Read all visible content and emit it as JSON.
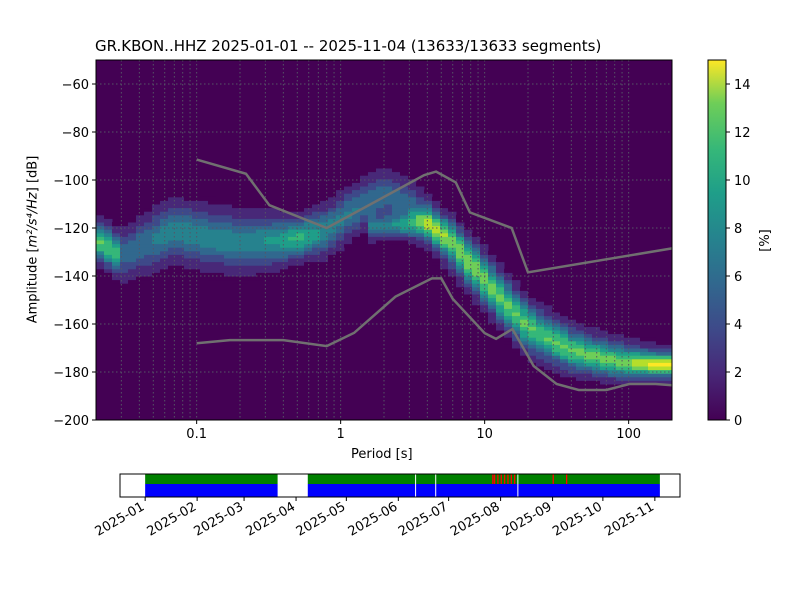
{
  "chart_data": {
    "type": "heatmap",
    "title": "GR.KBON..HHZ   2025-01-01 -- 2025-11-04  (13633/13633 segments)",
    "xlabel": "Period [s]",
    "ylabel_prefix": "Amplitude [",
    "ylabel_units": "m²/s⁴/Hz",
    "ylabel_suffix": "] [dB]",
    "xscale": "log",
    "xlim": [
      0.02,
      200
    ],
    "ylim": [
      -200,
      -50
    ],
    "xticks": [
      {
        "v": 0.1,
        "label": "0.1"
      },
      {
        "v": 1,
        "label": "1"
      },
      {
        "v": 10,
        "label": "10"
      },
      {
        "v": 100,
        "label": "100"
      }
    ],
    "yticks": [
      -60,
      -80,
      -100,
      -120,
      -140,
      -160,
      -180,
      -200
    ],
    "grid": true,
    "colorbar": {
      "label": "[%]",
      "range": [
        0,
        15
      ],
      "ticks": [
        0,
        2,
        4,
        6,
        8,
        10,
        12,
        14
      ]
    },
    "density_bands": [
      {
        "name": "main-band",
        "points": [
          [
            0.02,
            -125,
            5,
            11
          ],
          [
            0.03,
            -131,
            5,
            10
          ],
          [
            0.031,
            -131,
            6,
            5
          ],
          [
            0.05,
            -125,
            7,
            6
          ],
          [
            0.07,
            -121,
            7,
            7
          ],
          [
            0.1,
            -123,
            7,
            7
          ],
          [
            0.2,
            -126,
            7,
            7
          ],
          [
            0.4,
            -125,
            6,
            8
          ],
          [
            0.5,
            -124,
            5,
            10
          ],
          [
            0.8,
            -121,
            6,
            7
          ],
          [
            1.2,
            -113,
            6,
            6
          ],
          [
            2,
            -106,
            6,
            5
          ],
          [
            3,
            -110,
            6,
            5
          ],
          [
            5,
            -123,
            6,
            6
          ],
          [
            8,
            -136,
            6,
            7
          ],
          [
            12,
            -148,
            6,
            7
          ],
          [
            20,
            -162,
            6,
            7
          ],
          [
            40,
            -171,
            5,
            8
          ],
          [
            80,
            -176,
            4,
            9
          ],
          [
            150,
            -177,
            3,
            12
          ],
          [
            200,
            -177,
            3,
            12
          ]
        ]
      },
      {
        "name": "secondary-band",
        "points": [
          [
            1.5,
            -120,
            3,
            5
          ],
          [
            2.5,
            -119,
            3,
            7
          ],
          [
            4,
            -118,
            4,
            8
          ],
          [
            6,
            -125,
            5,
            6
          ],
          [
            10,
            -140,
            6,
            5
          ],
          [
            20,
            -160,
            6,
            4
          ],
          [
            40,
            -170,
            6,
            3
          ],
          [
            200,
            -176,
            4,
            3
          ]
        ]
      }
    ],
    "noise_models": [
      {
        "name": "NHNM",
        "points": [
          [
            0.1,
            -91.5
          ],
          [
            0.22,
            -97.4
          ],
          [
            0.32,
            -110.5
          ],
          [
            0.8,
            -120
          ],
          [
            3.8,
            -98
          ],
          [
            4.6,
            -96.5
          ],
          [
            6.3,
            -101
          ],
          [
            7.9,
            -113.5
          ],
          [
            15.4,
            -120
          ],
          [
            20,
            -138.5
          ],
          [
            200,
            -128.5
          ]
        ]
      },
      {
        "name": "NLNM",
        "points": [
          [
            0.1,
            -168
          ],
          [
            0.17,
            -166.7
          ],
          [
            0.4,
            -166.7
          ],
          [
            0.8,
            -169.2
          ],
          [
            1.24,
            -163.7
          ],
          [
            2.4,
            -148.6
          ],
          [
            4.3,
            -141
          ],
          [
            5,
            -141
          ],
          [
            6,
            -149.5
          ],
          [
            10,
            -163.8
          ],
          [
            12,
            -166.2
          ],
          [
            15.6,
            -162.1
          ],
          [
            21.9,
            -177.5
          ],
          [
            31.6,
            -185
          ],
          [
            45,
            -187.5
          ],
          [
            70,
            -187.5
          ],
          [
            101,
            -185
          ],
          [
            154,
            -185
          ],
          [
            200,
            -185.5
          ]
        ]
      }
    ],
    "timeline": {
      "range_days": [
        -15,
        319
      ],
      "ticks": [
        "2025-01",
        "2025-02",
        "2025-03",
        "2025-04",
        "2025-05",
        "2025-06",
        "2025-07",
        "2025-08",
        "2025-09",
        "2025-10",
        "2025-11"
      ],
      "tick_days": [
        0,
        31,
        59,
        90,
        120,
        151,
        181,
        212,
        243,
        273,
        304
      ],
      "coverage": [
        [
          0,
          79
        ],
        [
          97,
          307
        ]
      ],
      "gaps": [
        161,
        173,
        222
      ],
      "flags": [
        207,
        208,
        210,
        212,
        214,
        216,
        218,
        220,
        243,
        251
      ]
    },
    "colors": {
      "bg": "#440154",
      "green": "#008000",
      "blue": "#0000ff",
      "red": "#ff0000",
      "model": "#707070"
    }
  }
}
